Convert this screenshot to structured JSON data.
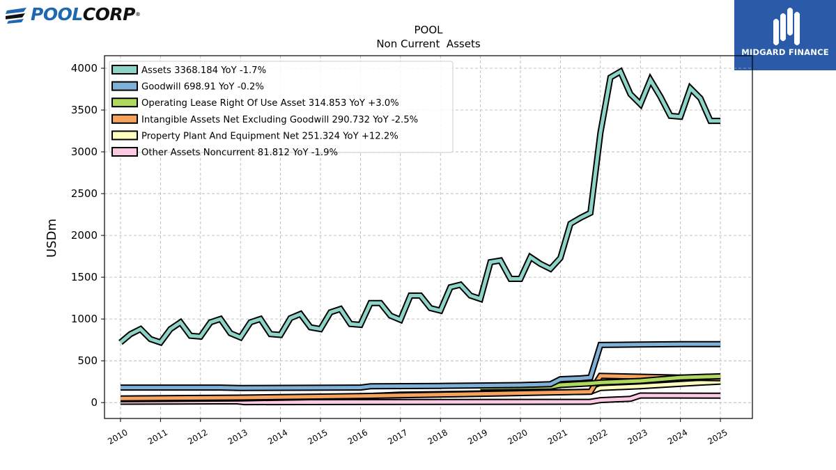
{
  "branding": {
    "left_logo_part1": "POOL",
    "left_logo_part2": "CORP",
    "left_logo_reg": "®",
    "right_logo_text": "MIDGARD FINANCE",
    "right_logo_bg": "#2b5aa8"
  },
  "chart_data": {
    "type": "area",
    "title": "POOL",
    "subtitle": "Non Current  Assets",
    "xlabel": "",
    "ylabel": "USDm",
    "xlim": [
      2009.6,
      2025.8
    ],
    "ylim": [
      -190,
      4150
    ],
    "x_ticks": [
      "2010",
      "2011",
      "2012",
      "2013",
      "2014",
      "2015",
      "2016",
      "2017",
      "2018",
      "2019",
      "2020",
      "2021",
      "2022",
      "2023",
      "2024",
      "2025"
    ],
    "y_ticks": [
      0,
      500,
      1000,
      1500,
      2000,
      2500,
      3000,
      3500,
      4000
    ],
    "grid": true,
    "legend_position": "top-left",
    "series": [
      {
        "name": "Other Assets Noncurrent  81.812 YoY -1.9%",
        "color": "#fcc9e3",
        "x": [
          2010.0,
          2012.9,
          2013.1,
          2021.75,
          2022.0,
          2022.75,
          2023.0,
          2025.0
        ],
        "values": [
          10,
          15,
          5,
          10,
          30,
          45,
          85,
          82
        ]
      },
      {
        "name": "Property Plant And Equipment Net  251.324 YoY +12.2%",
        "color": "#ffffbf",
        "x": [
          2010.0,
          2013.0,
          2016.0,
          2017.0,
          2021.75,
          2022.0,
          2023.0,
          2024.0,
          2025.0
        ],
        "values": [
          40,
          50,
          75,
          95,
          130,
          175,
          195,
          225,
          251
        ]
      },
      {
        "name": "Intangible Assets Net Excluding Goodwill  290.732 YoY -2.5%",
        "color": "#f6a35e",
        "x": [
          2010.0,
          2013.0,
          2016.0,
          2018.5,
          2021.75,
          2022.0,
          2023.0,
          2024.0,
          2025.0
        ],
        "values": [
          50,
          60,
          78,
          100,
          130,
          320,
          310,
          300,
          291
        ]
      },
      {
        "name": "Operating Lease Right Of Use Asset  314.853 YoY +3.0%",
        "color": "#aed85e",
        "x": [
          2019.0,
          2020.0,
          2020.75,
          2021.0,
          2021.75,
          2022.0,
          2023.0,
          2024.0,
          2025.0
        ],
        "values": [
          180,
          185,
          190,
          210,
          230,
          240,
          260,
          300,
          315
        ]
      },
      {
        "name": "Goodwill  698.91 YoY -0.2%",
        "color": "#7fb0d5",
        "x": [
          2010.0,
          2012.5,
          2013.0,
          2016.0,
          2016.25,
          2018.0,
          2019.0,
          2020.0,
          2020.75,
          2021.0,
          2021.5,
          2021.75,
          2022.0,
          2023.0,
          2024.0,
          2025.0
        ],
        "values": [
          180,
          180,
          175,
          180,
          195,
          200,
          205,
          210,
          220,
          280,
          290,
          300,
          690,
          695,
          700,
          699
        ]
      },
      {
        "name": "Assets  3368.184 YoY -1.7%",
        "color": "#8dd3c7",
        "x": [
          2010.0,
          2010.25,
          2010.5,
          2010.75,
          2011.0,
          2011.25,
          2011.5,
          2011.75,
          2012.0,
          2012.25,
          2012.5,
          2012.75,
          2013.0,
          2013.25,
          2013.5,
          2013.75,
          2014.0,
          2014.25,
          2014.5,
          2014.75,
          2015.0,
          2015.25,
          2015.5,
          2015.75,
          2016.0,
          2016.25,
          2016.5,
          2016.75,
          2017.0,
          2017.25,
          2017.5,
          2017.75,
          2018.0,
          2018.25,
          2018.5,
          2018.75,
          2019.0,
          2019.25,
          2019.5,
          2019.75,
          2020.0,
          2020.25,
          2020.5,
          2020.75,
          2021.0,
          2021.25,
          2021.5,
          2021.75,
          2022.0,
          2022.25,
          2022.5,
          2022.75,
          2023.0,
          2023.25,
          2023.5,
          2023.75,
          2024.0,
          2024.25,
          2024.5,
          2024.75,
          2025.0
        ],
        "values": [
          720,
          820,
          880,
          760,
          720,
          880,
          960,
          800,
          790,
          960,
          1000,
          830,
          780,
          960,
          1000,
          820,
          810,
          1010,
          1060,
          900,
          880,
          1080,
          1120,
          940,
          930,
          1190,
          1190,
          1040,
          990,
          1280,
          1280,
          1130,
          1100,
          1380,
          1410,
          1280,
          1240,
          1680,
          1700,
          1480,
          1480,
          1740,
          1660,
          1600,
          1730,
          2140,
          2210,
          2270,
          3230,
          3890,
          3960,
          3690,
          3570,
          3860,
          3660,
          3430,
          3420,
          3760,
          3640,
          3370,
          3370
        ]
      }
    ]
  }
}
